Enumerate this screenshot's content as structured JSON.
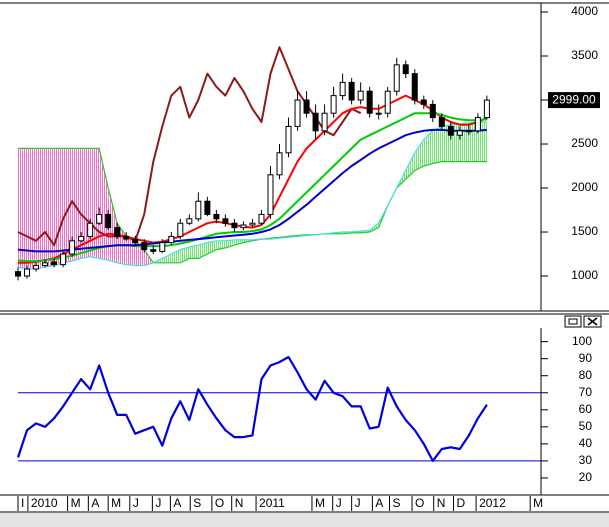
{
  "chart_data": {
    "type": "candlestick",
    "x": [
      0,
      1,
      2,
      3,
      4,
      5,
      6,
      7,
      8,
      9,
      10,
      11,
      12,
      13,
      14,
      15,
      16,
      17,
      18,
      19,
      20,
      21,
      22,
      23,
      24,
      25,
      26,
      27,
      28,
      29,
      30,
      31,
      32,
      33,
      34,
      35,
      36,
      37,
      38,
      39,
      40,
      41,
      42,
      43,
      44,
      45,
      46,
      47,
      48,
      49,
      50,
      51,
      52
    ],
    "open": [
      1050,
      1000,
      1080,
      1120,
      1160,
      1130,
      1250,
      1400,
      1450,
      1600,
      1700,
      1550,
      1450,
      1420,
      1380,
      1300,
      1280,
      1380,
      1450,
      1600,
      1650,
      1850,
      1700,
      1650,
      1600,
      1550,
      1580,
      1600,
      1700,
      2150,
      2400,
      2700,
      3000,
      2850,
      2650,
      2850,
      3050,
      3200,
      3000,
      3100,
      2850,
      2850,
      3100,
      3400,
      3300,
      3000,
      2950,
      2800,
      2700,
      2600,
      2650,
      2650,
      2800
    ],
    "high": [
      1100,
      1120,
      1150,
      1190,
      1200,
      1300,
      1450,
      1500,
      1650,
      1780,
      1750,
      1600,
      1500,
      1460,
      1420,
      1350,
      1420,
      1500,
      1650,
      1700,
      1950,
      1900,
      1750,
      1700,
      1650,
      1620,
      1650,
      1750,
      2250,
      2500,
      2800,
      3100,
      3100,
      2950,
      2950,
      3150,
      3300,
      3250,
      3200,
      3150,
      2950,
      3150,
      3480,
      3450,
      3350,
      3050,
      3000,
      2850,
      2750,
      2700,
      2720,
      2850,
      3050
    ],
    "low": [
      950,
      970,
      1050,
      1100,
      1100,
      1100,
      1220,
      1380,
      1420,
      1580,
      1520,
      1420,
      1400,
      1350,
      1270,
      1250,
      1260,
      1350,
      1420,
      1580,
      1620,
      1680,
      1600,
      1560,
      1500,
      1520,
      1550,
      1580,
      1650,
      2100,
      2350,
      2650,
      2800,
      2550,
      2600,
      2800,
      3000,
      2950,
      2950,
      2800,
      2780,
      2800,
      3050,
      3250,
      2950,
      2900,
      2750,
      2650,
      2550,
      2550,
      2600,
      2620,
      2780
    ],
    "close": [
      1000,
      1080,
      1120,
      1150,
      1130,
      1250,
      1400,
      1450,
      1600,
      1700,
      1550,
      1450,
      1420,
      1380,
      1300,
      1280,
      1380,
      1450,
      1600,
      1650,
      1850,
      1700,
      1650,
      1600,
      1550,
      1580,
      1600,
      1700,
      2150,
      2400,
      2700,
      3000,
      2850,
      2650,
      2850,
      3050,
      3200,
      3000,
      3100,
      2850,
      2850,
      3100,
      3400,
      3300,
      3000,
      2950,
      2800,
      2700,
      2600,
      2650,
      2650,
      2800,
      2999
    ],
    "candle_colors": {
      "up": "#ffffff",
      "down": "#000000",
      "edge": "#000000"
    },
    "cloud": {
      "span_a": {
        "color": "#44dddd",
        "values": [
          1100,
          1080,
          1080,
          1100,
          1120,
          1150,
          1170,
          1200,
          1220,
          1200,
          1180,
          1150,
          1130,
          1120,
          1120,
          1150,
          1200,
          1250,
          1300,
          1330,
          1350,
          1380,
          1400,
          1400,
          1410,
          1410,
          1410,
          1420,
          1420,
          1430,
          1440,
          1450,
          1460,
          1470,
          1480,
          1490,
          1500,
          1500,
          1510,
          1520,
          1600,
          1800,
          2000,
          2200,
          2400,
          2550,
          2650,
          2700,
          2720,
          2730,
          2740,
          2750,
          2750
        ]
      },
      "span_b": {
        "color": "#22cc22",
        "values": [
          2450,
          2450,
          2450,
          2450,
          2450,
          2450,
          2450,
          2450,
          2450,
          2450,
          2000,
          1600,
          1450,
          1400,
          1300,
          1150,
          1150,
          1150,
          1150,
          1200,
          1200,
          1250,
          1300,
          1320,
          1350,
          1380,
          1400,
          1420,
          1430,
          1440,
          1450,
          1460,
          1470,
          1470,
          1480,
          1480,
          1480,
          1490,
          1490,
          1500,
          1550,
          1800,
          2000,
          2100,
          2200,
          2250,
          2280,
          2300,
          2300,
          2300,
          2300,
          2300,
          2300
        ]
      },
      "fill_colors": {
        "bearish": "#ff66cc",
        "bullish": "#66ee66"
      }
    },
    "series": [
      {
        "color": "#8b1a1a",
        "values": [
          1500,
          1450,
          1400,
          1500,
          1350,
          1650,
          1850,
          1700,
          1600,
          1500,
          1450,
          1450,
          1450,
          1400,
          1700,
          2300,
          2700,
          3050,
          3150,
          2800,
          3000,
          3300,
          3150,
          3050,
          3250,
          3100,
          2900,
          2750,
          3300,
          3600,
          3350,
          3100,
          2950,
          2800,
          2650,
          2600,
          2750,
          2900,
          2850,
          null,
          null,
          null,
          null,
          null,
          null,
          null,
          null,
          null,
          null,
          null,
          null,
          null,
          null
        ]
      },
      {
        "color": "#ff0000",
        "values": [
          1150,
          1150,
          1160,
          1180,
          1200,
          1250,
          1300,
          1350,
          1400,
          1450,
          1480,
          1470,
          1450,
          1420,
          1400,
          1380,
          1390,
          1420,
          1450,
          1500,
          1550,
          1600,
          1620,
          1600,
          1580,
          1560,
          1550,
          1580,
          1700,
          1900,
          2100,
          2300,
          2450,
          2550,
          2650,
          2750,
          2850,
          2900,
          2920,
          2900,
          2900,
          2950,
          3000,
          3050,
          3000,
          2950,
          2880,
          2800,
          2750,
          2720,
          2720,
          2750,
          2800
        ]
      },
      {
        "color": "#00cc00",
        "values": [
          1180,
          1170,
          1170,
          1180,
          1190,
          1210,
          1230,
          1260,
          1290,
          1320,
          1340,
          1350,
          1350,
          1340,
          1340,
          1340,
          1340,
          1350,
          1370,
          1390,
          1420,
          1450,
          1480,
          1490,
          1500,
          1500,
          1510,
          1530,
          1580,
          1650,
          1750,
          1850,
          1950,
          2050,
          2150,
          2250,
          2350,
          2450,
          2550,
          2600,
          2650,
          2700,
          2750,
          2800,
          2850,
          2850,
          2850,
          2830,
          2800,
          2780,
          2770,
          2770,
          2780
        ]
      },
      {
        "color": "#0000cc",
        "values": [
          1300,
          1290,
          1280,
          1280,
          1280,
          1290,
          1300,
          1310,
          1320,
          1330,
          1340,
          1350,
          1350,
          1350,
          1360,
          1370,
          1380,
          1390,
          1400,
          1410,
          1420,
          1430,
          1440,
          1450,
          1460,
          1470,
          1480,
          1500,
          1530,
          1580,
          1650,
          1730,
          1810,
          1900,
          1990,
          2080,
          2170,
          2250,
          2320,
          2390,
          2450,
          2500,
          2550,
          2600,
          2630,
          2650,
          2660,
          2660,
          2650,
          2650,
          2650,
          2650,
          2660
        ]
      }
    ],
    "xlim": [
      0,
      58
    ],
    "xticks": [
      {
        "value": 0,
        "label": "I"
      },
      {
        "value": 1.1,
        "label": "2010"
      },
      {
        "value": 5.5,
        "label": "M"
      },
      {
        "value": 7.8,
        "label": "A"
      },
      {
        "value": 10,
        "label": "M"
      },
      {
        "value": 12.4,
        "label": "J"
      },
      {
        "value": 14.9,
        "label": "J"
      },
      {
        "value": 16.9,
        "label": "A"
      },
      {
        "value": 19.1,
        "label": "S"
      },
      {
        "value": 21.5,
        "label": "O"
      },
      {
        "value": 23.7,
        "label": "N"
      },
      {
        "value": 26.4,
        "label": "2011"
      },
      {
        "value": 32.6,
        "label": "M"
      },
      {
        "value": 34.9,
        "label": "J"
      },
      {
        "value": 37,
        "label": "J"
      },
      {
        "value": 39.3,
        "label": "A"
      },
      {
        "value": 41.2,
        "label": "S"
      },
      {
        "value": 43.7,
        "label": "O"
      },
      {
        "value": 46.1,
        "label": "N"
      },
      {
        "value": 48.3,
        "label": "D"
      },
      {
        "value": 50.8,
        "label": "2012"
      },
      {
        "value": 56.8,
        "label": "M"
      }
    ],
    "ylim": [
      614,
      4091
    ],
    "yticks": [
      1000,
      1500,
      2000,
      2500,
      3000,
      3500,
      4000
    ],
    "last_label": {
      "value": 2999,
      "label": "2999.00"
    },
    "rsi": {
      "color": "#0000dd",
      "values": [
        32,
        48,
        52,
        50,
        55,
        62,
        70,
        78,
        72,
        86,
        70,
        57,
        57,
        46,
        48,
        50,
        39,
        55,
        65,
        54,
        72,
        63,
        55,
        48,
        44,
        44,
        45,
        78,
        86,
        88,
        91,
        82,
        72,
        66,
        77,
        70,
        68,
        62,
        62,
        49,
        50,
        73,
        62,
        54,
        48,
        40,
        30,
        37,
        38,
        37,
        45,
        55,
        63
      ],
      "ylim": [
        10,
        108
      ],
      "yticks": [
        20,
        30,
        40,
        50,
        60,
        70,
        80,
        90,
        100
      ],
      "levels": [
        70,
        30
      ]
    }
  }
}
